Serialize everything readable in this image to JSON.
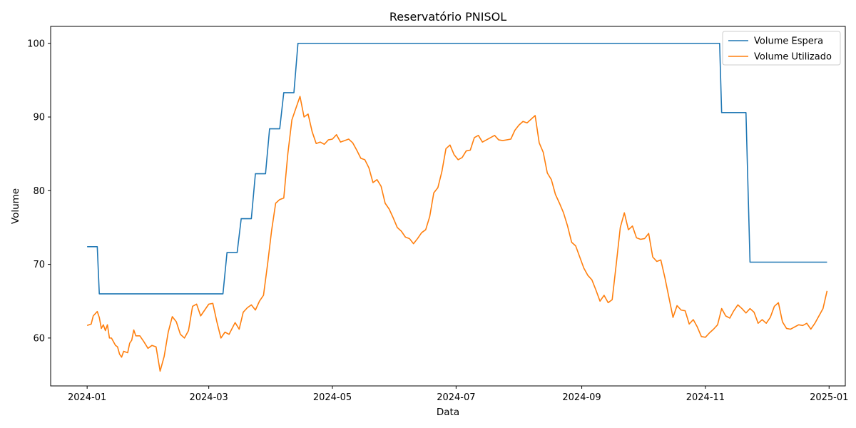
{
  "chart_data": {
    "type": "line",
    "title": "Reservatório PNISOL",
    "xlabel": "Data",
    "ylabel": "Volume",
    "xlim": [
      "2023-12-14",
      "2025-01-09"
    ],
    "ylim": [
      53.5,
      102.3
    ],
    "x_ticks": [
      "2024-01-01",
      "2024-03-01",
      "2024-05-01",
      "2024-07-01",
      "2024-09-01",
      "2024-11-01",
      "2025-01-01"
    ],
    "x_tick_labels": [
      "2024-01",
      "2024-03",
      "2024-05",
      "2024-07",
      "2024-09",
      "2024-11",
      "2025-01"
    ],
    "y_ticks": [
      60,
      70,
      80,
      90,
      100
    ],
    "y_tick_labels": [
      "60",
      "70",
      "80",
      "90",
      "100"
    ],
    "grid": false,
    "legend_position": "top-right",
    "series": [
      {
        "name": "Volume Espera",
        "color": "#1f77b4",
        "step": true,
        "x": [
          "2024-01-01",
          "2024-01-06",
          "2024-01-07",
          "2024-03-08",
          "2024-03-10",
          "2024-03-15",
          "2024-03-17",
          "2024-03-22",
          "2024-03-24",
          "2024-03-29",
          "2024-03-31",
          "2024-04-05",
          "2024-04-07",
          "2024-04-12",
          "2024-04-14",
          "2024-11-08",
          "2024-11-09",
          "2024-11-21",
          "2024-11-23",
          "2024-12-31"
        ],
        "values": [
          72.4,
          72.4,
          66.0,
          66.0,
          71.6,
          71.6,
          76.2,
          76.2,
          82.3,
          82.3,
          88.4,
          88.4,
          93.3,
          93.3,
          100.0,
          100.0,
          90.6,
          90.6,
          70.3,
          70.3
        ]
      },
      {
        "name": "Volume Utilizado",
        "color": "#ff7f0e",
        "step": false,
        "x": [
          "2024-01-01",
          "2024-01-03",
          "2024-01-04",
          "2024-01-06",
          "2024-01-07",
          "2024-01-08",
          "2024-01-09",
          "2024-01-10",
          "2024-01-11",
          "2024-01-12",
          "2024-01-13",
          "2024-01-15",
          "2024-01-16",
          "2024-01-17",
          "2024-01-18",
          "2024-01-19",
          "2024-01-21",
          "2024-01-22",
          "2024-01-23",
          "2024-01-24",
          "2024-01-25",
          "2024-01-27",
          "2024-01-29",
          "2024-01-31",
          "2024-02-02",
          "2024-02-04",
          "2024-02-06",
          "2024-02-08",
          "2024-02-10",
          "2024-02-12",
          "2024-02-14",
          "2024-02-16",
          "2024-02-18",
          "2024-02-20",
          "2024-02-22",
          "2024-02-24",
          "2024-02-26",
          "2024-02-28",
          "2024-03-01",
          "2024-03-03",
          "2024-03-05",
          "2024-03-07",
          "2024-03-09",
          "2024-03-11",
          "2024-03-14",
          "2024-03-16",
          "2024-03-18",
          "2024-03-20",
          "2024-03-22",
          "2024-03-24",
          "2024-03-26",
          "2024-03-28",
          "2024-03-30",
          "2024-04-01",
          "2024-04-03",
          "2024-04-05",
          "2024-04-07",
          "2024-04-09",
          "2024-04-11",
          "2024-04-13",
          "2024-04-15",
          "2024-04-17",
          "2024-04-19",
          "2024-04-21",
          "2024-04-23",
          "2024-04-25",
          "2024-04-27",
          "2024-04-29",
          "2024-05-01",
          "2024-05-03",
          "2024-05-05",
          "2024-05-07",
          "2024-05-09",
          "2024-05-11",
          "2024-05-13",
          "2024-05-15",
          "2024-05-17",
          "2024-05-19",
          "2024-05-21",
          "2024-05-23",
          "2024-05-25",
          "2024-05-27",
          "2024-05-29",
          "2024-05-31",
          "2024-06-02",
          "2024-06-04",
          "2024-06-06",
          "2024-06-08",
          "2024-06-10",
          "2024-06-12",
          "2024-06-14",
          "2024-06-16",
          "2024-06-18",
          "2024-06-20",
          "2024-06-22",
          "2024-06-24",
          "2024-06-26",
          "2024-06-28",
          "2024-06-30",
          "2024-07-02",
          "2024-07-04",
          "2024-07-06",
          "2024-07-08",
          "2024-07-10",
          "2024-07-12",
          "2024-07-14",
          "2024-07-16",
          "2024-07-18",
          "2024-07-20",
          "2024-07-22",
          "2024-07-24",
          "2024-07-26",
          "2024-07-28",
          "2024-07-30",
          "2024-08-01",
          "2024-08-03",
          "2024-08-05",
          "2024-08-07",
          "2024-08-09",
          "2024-08-11",
          "2024-08-13",
          "2024-08-15",
          "2024-08-17",
          "2024-08-19",
          "2024-08-21",
          "2024-08-23",
          "2024-08-25",
          "2024-08-27",
          "2024-08-29",
          "2024-08-31",
          "2024-09-02",
          "2024-09-04",
          "2024-09-06",
          "2024-09-08",
          "2024-09-10",
          "2024-09-12",
          "2024-09-14",
          "2024-09-16",
          "2024-09-18",
          "2024-09-20",
          "2024-09-22",
          "2024-09-24",
          "2024-09-26",
          "2024-09-28",
          "2024-09-30",
          "2024-10-02",
          "2024-10-04",
          "2024-10-06",
          "2024-10-08",
          "2024-10-10",
          "2024-10-12",
          "2024-10-14",
          "2024-10-16",
          "2024-10-18",
          "2024-10-20",
          "2024-10-22",
          "2024-10-24",
          "2024-10-26",
          "2024-10-28",
          "2024-10-30",
          "2024-11-01",
          "2024-11-03",
          "2024-11-05",
          "2024-11-07",
          "2024-11-09",
          "2024-11-11",
          "2024-11-13",
          "2024-11-15",
          "2024-11-17",
          "2024-11-19",
          "2024-11-21",
          "2024-11-23",
          "2024-11-25",
          "2024-11-27",
          "2024-11-29",
          "2024-12-01",
          "2024-12-03",
          "2024-12-05",
          "2024-12-07",
          "2024-12-09",
          "2024-12-11",
          "2024-12-13",
          "2024-12-15",
          "2024-12-17",
          "2024-12-19",
          "2024-12-21",
          "2024-12-23",
          "2024-12-25",
          "2024-12-27",
          "2024-12-29",
          "2024-12-31"
        ],
        "values": [
          61.7,
          61.9,
          63.0,
          63.6,
          62.8,
          61.3,
          61.8,
          61.0,
          61.8,
          60.0,
          60.0,
          59.0,
          58.8,
          57.8,
          57.4,
          58.2,
          58.0,
          59.3,
          59.7,
          61.1,
          60.3,
          60.3,
          59.5,
          58.6,
          59.0,
          58.8,
          55.5,
          57.5,
          60.8,
          62.9,
          62.2,
          60.5,
          60.0,
          61.0,
          64.3,
          64.6,
          63.0,
          63.8,
          64.6,
          64.7,
          62.2,
          60.0,
          60.8,
          60.5,
          62.1,
          61.2,
          63.5,
          64.1,
          64.5,
          63.8,
          65.0,
          65.8,
          70.0,
          74.6,
          78.3,
          78.8,
          79.0,
          85.0,
          89.6,
          91.2,
          92.8,
          90.0,
          90.4,
          88.0,
          86.4,
          86.6,
          86.3,
          86.9,
          87.0,
          87.6,
          86.6,
          86.8,
          87.0,
          86.5,
          85.5,
          84.4,
          84.2,
          83.1,
          81.1,
          81.5,
          80.6,
          78.3,
          77.5,
          76.3,
          75.0,
          74.5,
          73.7,
          73.5,
          72.8,
          73.5,
          74.3,
          74.7,
          76.5,
          79.7,
          80.4,
          82.6,
          85.7,
          86.2,
          84.9,
          84.2,
          84.5,
          85.4,
          85.5,
          87.2,
          87.5,
          86.6,
          86.9,
          87.2,
          87.5,
          86.9,
          86.8,
          86.9,
          87.0,
          88.2,
          88.9,
          89.4,
          89.2,
          89.7,
          90.2,
          86.5,
          85.2,
          82.4,
          81.5,
          79.5,
          78.3,
          77.0,
          75.2,
          73.0,
          72.5,
          71.0,
          69.5,
          68.5,
          67.9,
          66.5,
          65.0,
          65.8,
          64.8,
          65.2,
          70.0,
          75.0,
          77.0,
          74.7,
          75.2,
          73.6,
          73.4,
          73.5,
          74.2,
          71.0,
          70.4,
          70.6,
          68.2,
          65.5,
          62.8,
          64.4,
          63.8,
          63.7,
          61.9,
          62.5,
          61.5,
          60.2,
          60.1,
          60.7,
          61.2,
          61.8,
          64.0,
          63.0,
          62.7,
          63.7,
          64.5,
          64.0,
          63.4,
          64.0,
          63.5,
          62.0,
          62.5,
          62.0,
          62.8,
          64.3,
          64.8,
          62.2,
          61.3,
          61.2,
          61.5,
          61.8,
          61.7,
          62.0,
          61.2,
          62.0,
          63.0,
          64.0,
          66.4
        ]
      }
    ]
  }
}
